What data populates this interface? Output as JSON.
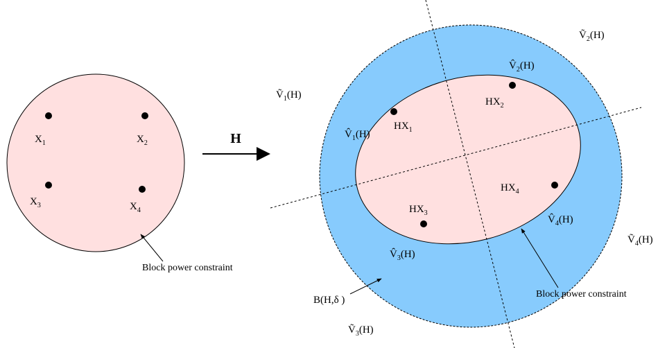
{
  "left": {
    "points": [
      {
        "main": "X",
        "sub": "1"
      },
      {
        "main": "X",
        "sub": "2"
      },
      {
        "main": "X",
        "sub": "3"
      },
      {
        "main": "X",
        "sub": "4"
      }
    ],
    "caption": "Block power constraint"
  },
  "transform": "H",
  "right": {
    "points": [
      {
        "main": "HX",
        "sub": "1"
      },
      {
        "main": "HX",
        "sub": "2"
      },
      {
        "main": "HX",
        "sub": "3"
      },
      {
        "main": "HX",
        "sub": "4"
      }
    ],
    "regions_hat": [
      {
        "main": "V̂",
        "sub": "1",
        "tail": "(H)"
      },
      {
        "main": "V̂",
        "sub": "2",
        "tail": "(H)"
      },
      {
        "main": "V̂",
        "sub": "3",
        "tail": "(H)"
      },
      {
        "main": "V̂",
        "sub": "4",
        "tail": "(H)"
      }
    ],
    "regions_tilde": [
      {
        "main": "Ṽ",
        "sub": "1",
        "tail": "(H)"
      },
      {
        "main": "Ṽ",
        "sub": "2",
        "tail": "(H)"
      },
      {
        "main": "Ṽ",
        "sub": "3",
        "tail": "(H)"
      },
      {
        "main": "Ṽ",
        "sub": "4",
        "tail": "(H)"
      }
    ],
    "ball": "B(H,δ )",
    "caption": "Block power constraint"
  }
}
